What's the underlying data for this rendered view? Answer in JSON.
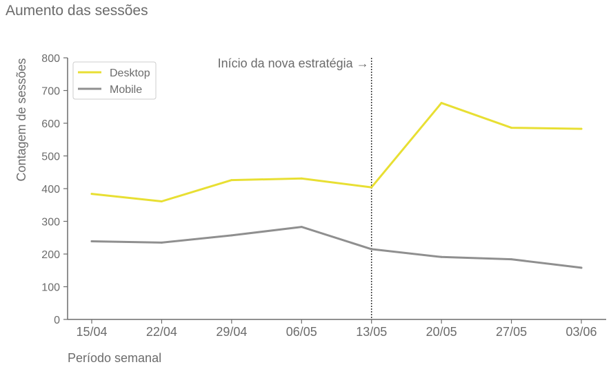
{
  "chart_data": {
    "type": "line",
    "title": "Aumento das sessões",
    "xlabel": "Período semanal",
    "ylabel": "Contagem de sessões",
    "categories": [
      "15/04",
      "22/04",
      "29/04",
      "06/05",
      "13/05",
      "20/05",
      "27/05",
      "03/06"
    ],
    "ylim": [
      0,
      800
    ],
    "yticks": [
      0,
      100,
      200,
      300,
      400,
      500,
      600,
      700,
      800
    ],
    "grid": false,
    "legend_position": "top-left",
    "series": [
      {
        "name": "Desktop",
        "color": "#e8df33",
        "values": [
          384,
          361,
          426,
          431,
          404,
          662,
          586,
          583
        ]
      },
      {
        "name": "Mobile",
        "color": "#8f8f8f",
        "values": [
          239,
          235,
          257,
          283,
          215,
          191,
          184,
          158
        ]
      }
    ],
    "annotation": {
      "text": "Início da nova estratégia →",
      "at_category": "13/05",
      "line_style": "dotted"
    }
  }
}
